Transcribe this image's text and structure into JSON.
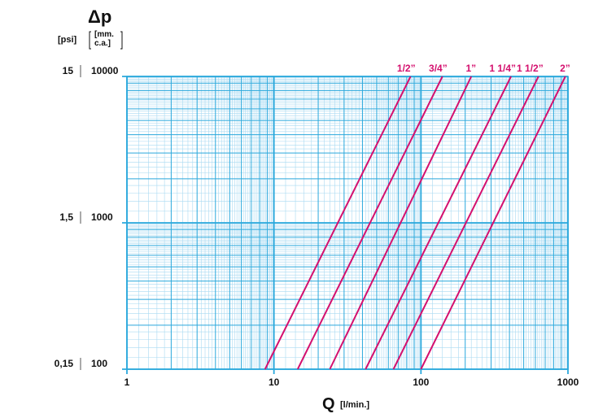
{
  "chart_data": {
    "type": "line",
    "scale": "log-log",
    "ylabel": "Δp",
    "ylabel_units": [
      "[psi]",
      "[mm.",
      "c.a.]"
    ],
    "xlabel": "Q",
    "xlabel_units": "[l/min.]",
    "x_ticks": [
      "1",
      "10",
      "100",
      "1000"
    ],
    "y_ticks_mmca": [
      "100",
      "1000",
      "10000"
    ],
    "y_ticks_psi": [
      "0,15",
      "1,5",
      "15"
    ],
    "xlim": [
      1,
      1000
    ],
    "ylim": [
      100,
      10000
    ],
    "grid": true,
    "series": [
      {
        "name": "1/2”",
        "points": [
          [
            8.7,
            100
          ],
          [
            85,
            10000
          ]
        ]
      },
      {
        "name": "3/4”",
        "points": [
          [
            14.5,
            100
          ],
          [
            140,
            10000
          ]
        ]
      },
      {
        "name": "1”",
        "points": [
          [
            24,
            100
          ],
          [
            220,
            10000
          ]
        ]
      },
      {
        "name": "1 1/4”",
        "points": [
          [
            42,
            100
          ],
          [
            410,
            10000
          ]
        ]
      },
      {
        "name": "1 1/2”",
        "points": [
          [
            65,
            100
          ],
          [
            630,
            10000
          ]
        ]
      },
      {
        "name": "2”",
        "points": [
          [
            100,
            100
          ],
          [
            960,
            10000
          ]
        ]
      }
    ]
  },
  "colors": {
    "grid_major": "#2aa8dc",
    "grid_minor": "#a9daf2",
    "series": "#d4106e",
    "text": "#111111"
  }
}
